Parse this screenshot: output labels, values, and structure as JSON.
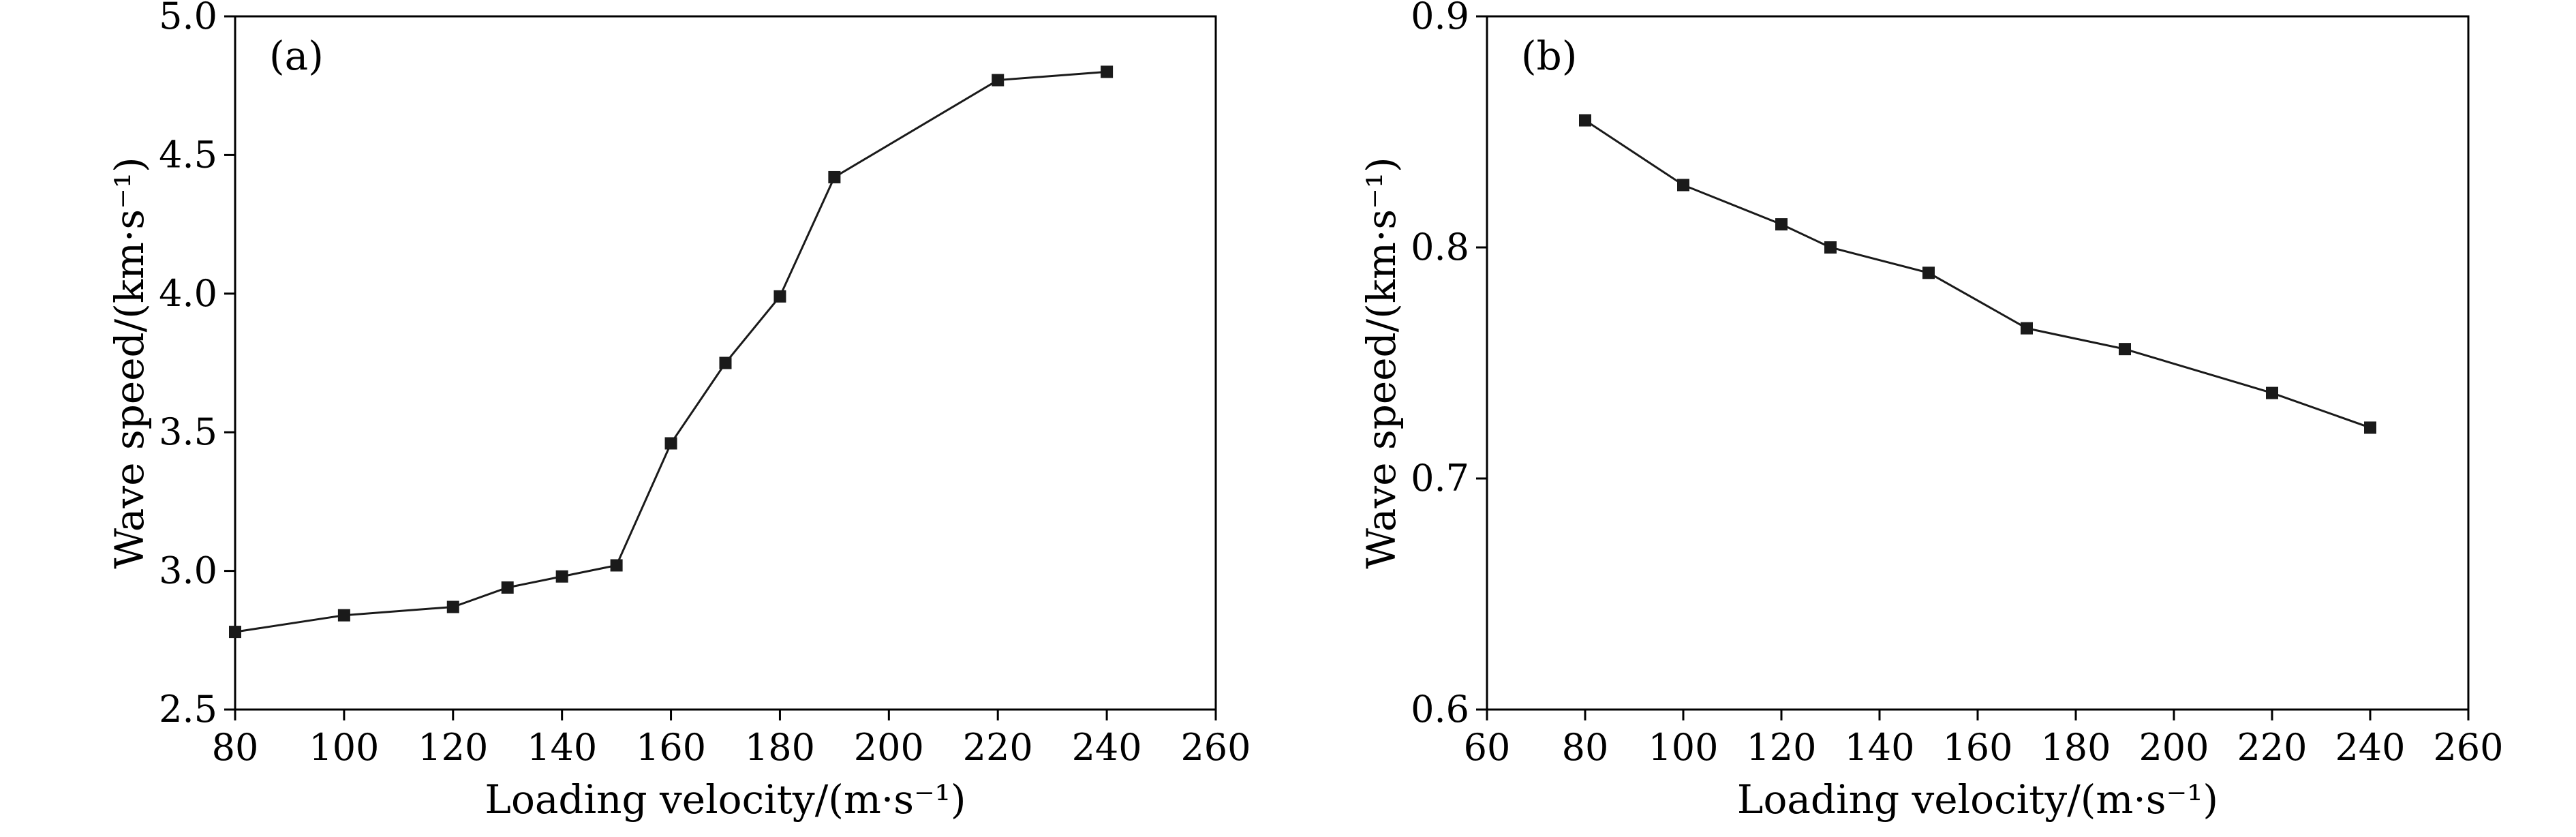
{
  "figure": {
    "background": "#ffffff",
    "axis_color": "#000000",
    "line_color": "#1a1a1a",
    "marker_color": "#1a1a1a"
  },
  "chart_data": [
    {
      "type": "line",
      "panel_label": "(a)",
      "title": "",
      "xlabel": "Loading velocity/(m·s⁻¹)",
      "ylabel": "Wave speed/(km·s⁻¹)",
      "xlim": [
        80,
        260
      ],
      "ylim": [
        2.5,
        5.0
      ],
      "xticks": [
        80,
        100,
        120,
        140,
        160,
        180,
        200,
        220,
        240,
        260
      ],
      "yticks": [
        2.5,
        3.0,
        3.5,
        4.0,
        4.5,
        5.0
      ],
      "ytick_decimals": 1,
      "grid": false,
      "legend": "none",
      "marker": "square",
      "x": [
        80,
        100,
        120,
        130,
        140,
        150,
        160,
        170,
        180,
        190,
        220,
        240
      ],
      "y": [
        2.78,
        2.84,
        2.87,
        2.94,
        2.98,
        3.02,
        3.46,
        3.75,
        3.99,
        4.42,
        4.77,
        4.8
      ]
    },
    {
      "type": "line",
      "panel_label": "(b)",
      "title": "",
      "xlabel": "Loading velocity/(m·s⁻¹)",
      "ylabel": "Wave speed/(km·s⁻¹)",
      "xlim": [
        60,
        260
      ],
      "ylim": [
        0.6,
        0.9
      ],
      "xticks": [
        60,
        80,
        100,
        120,
        140,
        160,
        180,
        200,
        220,
        240,
        260
      ],
      "yticks": [
        0.6,
        0.7,
        0.8,
        0.9
      ],
      "ytick_decimals": 1,
      "grid": false,
      "legend": "none",
      "marker": "square",
      "x": [
        80,
        100,
        120,
        130,
        150,
        170,
        190,
        220,
        240
      ],
      "y": [
        0.855,
        0.827,
        0.81,
        0.8,
        0.789,
        0.765,
        0.756,
        0.737,
        0.722
      ]
    }
  ]
}
